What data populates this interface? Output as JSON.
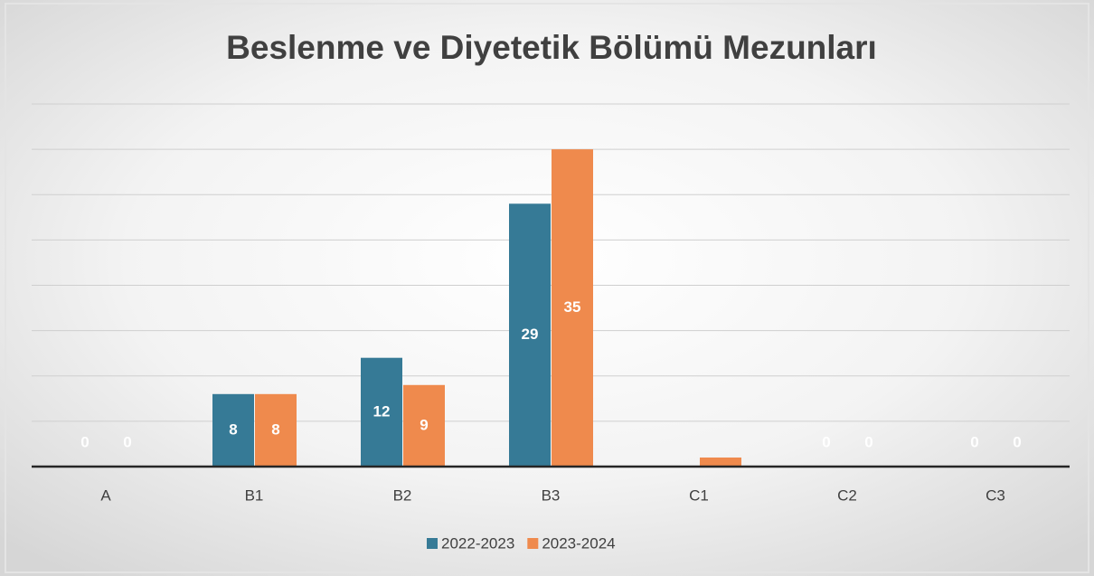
{
  "chart_data": {
    "type": "bar",
    "title": "Beslenme ve Diyetetik Bölümü Mezunları",
    "categories": [
      "A",
      "B1",
      "B2",
      "B3",
      "C1",
      "C2",
      "C3"
    ],
    "series": [
      {
        "name": "2022-2023",
        "color": "#367a96",
        "values": [
          0,
          8,
          12,
          29,
          0,
          0,
          0
        ],
        "value_labels": [
          "0",
          "8",
          "12",
          "29",
          null,
          "0",
          "0"
        ]
      },
      {
        "name": "2023-2024",
        "color": "#ef8a4d",
        "values": [
          0,
          8,
          9,
          35,
          1,
          0,
          0
        ],
        "value_labels": [
          "0",
          "8",
          "9",
          "35",
          null,
          "0",
          "0"
        ]
      }
    ],
    "ylim": [
      0,
      40
    ],
    "yticks": [
      0,
      5,
      10,
      15,
      20,
      25,
      30,
      35,
      40
    ],
    "grid": true,
    "legend": "bottom"
  }
}
